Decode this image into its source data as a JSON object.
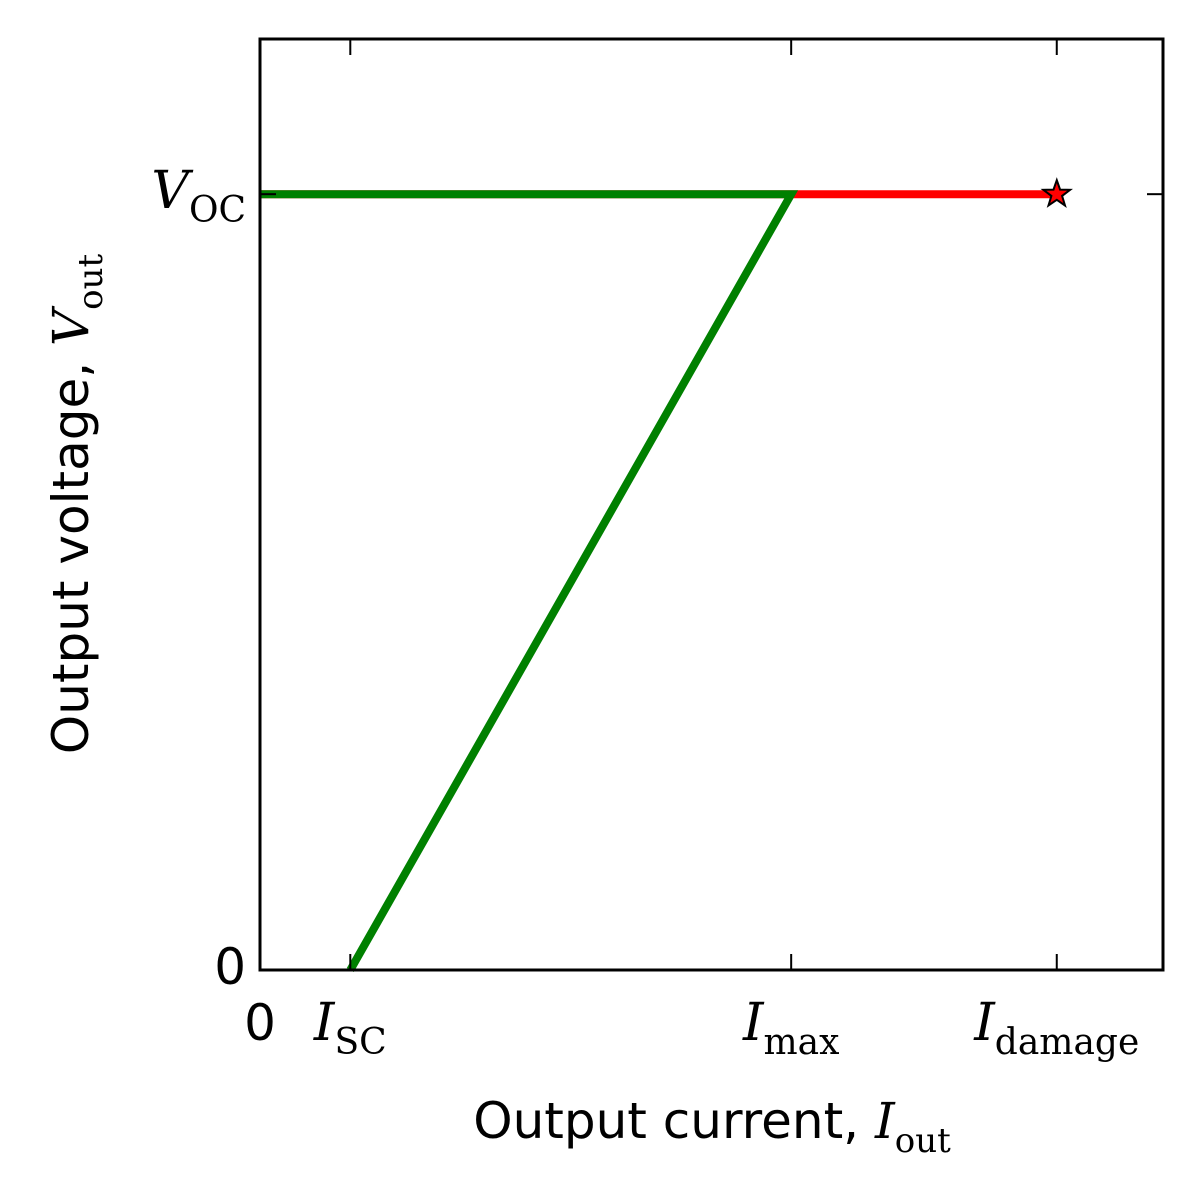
{
  "chart_data": {
    "type": "line",
    "xlabel": {
      "text": "Output current, ",
      "symbol": "I",
      "subscript": "out"
    },
    "ylabel": {
      "text": "Output voltage, ",
      "symbol": "V",
      "subscript": "out"
    },
    "xlim": [
      0,
      1.7
    ],
    "ylim": [
      0,
      1.2
    ],
    "x_ticks": [
      {
        "value": 0,
        "text": "0",
        "symbol": "",
        "subscript": ""
      },
      {
        "value": 0.17,
        "text": "",
        "symbol": "I",
        "subscript": "SC"
      },
      {
        "value": 1.0,
        "text": "",
        "symbol": "I",
        "subscript": "max"
      },
      {
        "value": 1.5,
        "text": "",
        "symbol": "I",
        "subscript": "damage"
      }
    ],
    "y_ticks": [
      {
        "value": 0,
        "text": "0",
        "symbol": "",
        "subscript": ""
      },
      {
        "value": 1.0,
        "text": "",
        "symbol": "V",
        "subscript": "OC"
      }
    ],
    "series": [
      {
        "color": "#ff0000",
        "x": [
          0,
          1.5
        ],
        "y": [
          1.0,
          1.0
        ]
      },
      {
        "color": "#008000",
        "x": [
          0,
          1.0,
          0.17
        ],
        "y": [
          1.0,
          1.0,
          0
        ]
      }
    ],
    "marker": {
      "shape": "star",
      "x": 1.5,
      "y": 1.0,
      "color": "#ff0000"
    },
    "grid": false,
    "legend": false
  }
}
